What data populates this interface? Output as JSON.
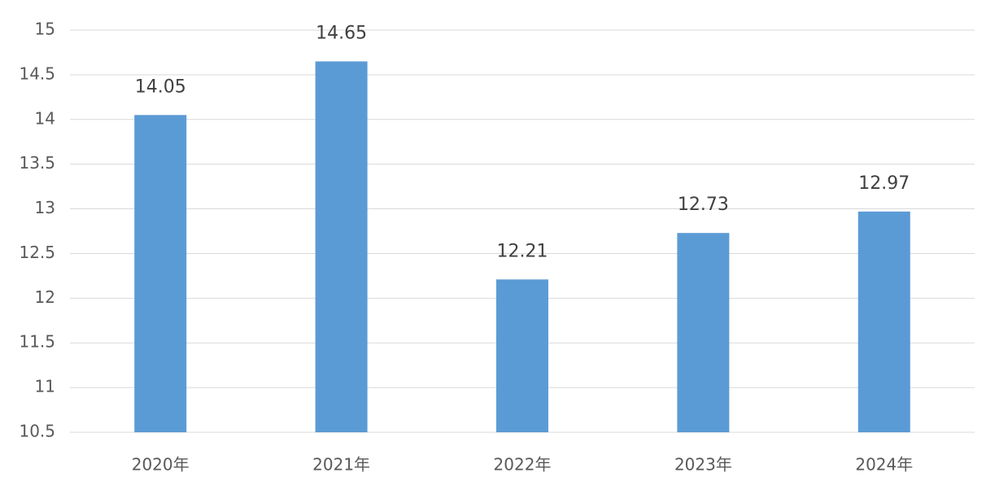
{
  "chart_data": {
    "type": "bar",
    "categories": [
      "2020年",
      "2021年",
      "2022年",
      "2023年",
      "2024年"
    ],
    "values": [
      14.05,
      14.65,
      12.21,
      12.73,
      12.97
    ],
    "color": "#5b9bd5",
    "ylim": [
      10.5,
      15
    ],
    "yticks": [
      10.5,
      11,
      11.5,
      12,
      12.5,
      13,
      13.5,
      14,
      14.5,
      15
    ],
    "grid": true
  }
}
